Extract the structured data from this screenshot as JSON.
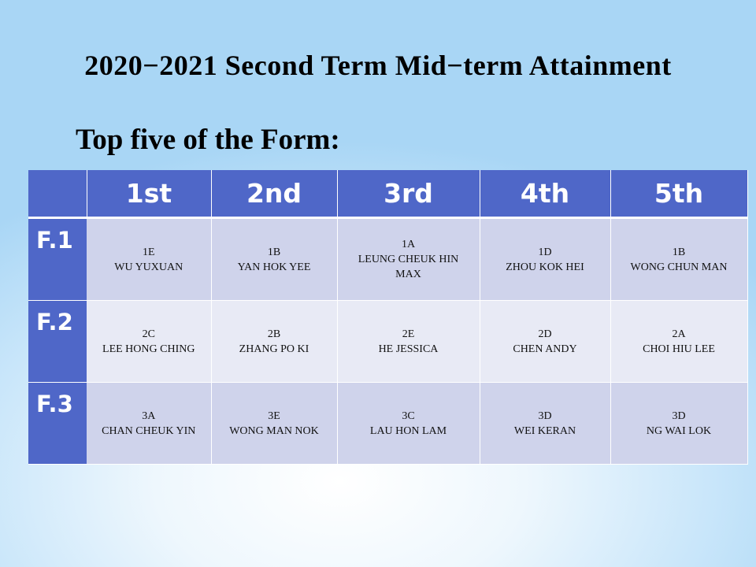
{
  "title": "2020−2021 Second Term Mid−term Attainment",
  "subtitle": "Top five of the Form:",
  "table": {
    "headers": [
      "",
      "1st",
      "2nd",
      "3rd",
      "4th",
      "5th"
    ],
    "rows": [
      {
        "form": "F.1",
        "cells": [
          {
            "class": "1E",
            "name": "WU YUXUAN"
          },
          {
            "class": "1B",
            "name": "YAN HOK YEE"
          },
          {
            "class": "1A",
            "name": "LEUNG  CHEUK HIN MAX"
          },
          {
            "class": "1D",
            "name": "ZHOU KOK HEI"
          },
          {
            "class": "1B",
            "name": "WONG CHUN MAN"
          }
        ]
      },
      {
        "form": "F.2",
        "cells": [
          {
            "class": "2C",
            "name": "LEE  HONG CHING"
          },
          {
            "class": "2B",
            "name": "ZHANG  PO KI"
          },
          {
            "class": "2E",
            "name": "HE JESSICA"
          },
          {
            "class": "2D",
            "name": "CHEN ANDY"
          },
          {
            "class": "2A",
            "name": "CHOI HIU LEE"
          }
        ]
      },
      {
        "form": "F.3",
        "cells": [
          {
            "class": "3A",
            "name": "CHAN CHEUK  YIN"
          },
          {
            "class": "3E",
            "name": "WONG MAN NOK"
          },
          {
            "class": "3C",
            "name": "LAU  HON LAM"
          },
          {
            "class": "3D",
            "name": "WEI KERAN"
          },
          {
            "class": "3D",
            "name": "NG WAI LOK"
          }
        ]
      }
    ]
  },
  "colors": {
    "header": "#4f67c8",
    "row_dark": "#cfd3eb",
    "row_light": "#e8eaf5"
  }
}
